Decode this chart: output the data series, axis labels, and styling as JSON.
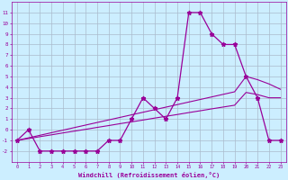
{
  "xlabel": "Windchill (Refroidissement éolien,°C)",
  "hours": [
    0,
    1,
    2,
    3,
    4,
    5,
    6,
    7,
    8,
    9,
    10,
    11,
    12,
    13,
    14,
    15,
    16,
    17,
    18,
    19,
    20,
    21,
    22,
    23
  ],
  "windchill": [
    -1,
    0,
    -2,
    -2,
    -2,
    -2,
    -2,
    -2,
    -1,
    -1,
    1,
    3,
    2,
    1,
    3,
    11,
    11,
    9,
    8,
    8,
    5,
    3,
    -1,
    -1
  ],
  "line1": [
    -1,
    -0.83,
    -0.65,
    -0.48,
    -0.3,
    -0.13,
    0.04,
    0.22,
    0.39,
    0.57,
    0.74,
    0.91,
    1.09,
    1.26,
    1.43,
    1.61,
    1.78,
    1.96,
    2.13,
    2.3,
    3.5,
    3.3,
    3.0,
    3.0
  ],
  "line2": [
    -1,
    -0.76,
    -0.52,
    -0.28,
    -0.04,
    0.2,
    0.44,
    0.68,
    0.92,
    1.16,
    1.4,
    1.64,
    1.88,
    2.12,
    2.36,
    2.6,
    2.84,
    3.08,
    3.32,
    3.56,
    5.0,
    4.7,
    4.3,
    3.8
  ],
  "line_color": "#990099",
  "bg_color": "#cceeff",
  "grid_color": "#aabbcc",
  "ylim": [
    -3,
    12
  ],
  "xlim": [
    -0.5,
    23.5
  ],
  "yticks": [
    -2,
    -1,
    0,
    1,
    2,
    3,
    4,
    5,
    6,
    7,
    8,
    9,
    10,
    11
  ],
  "xticks": [
    0,
    1,
    2,
    3,
    4,
    5,
    6,
    7,
    8,
    9,
    10,
    11,
    12,
    13,
    14,
    15,
    16,
    17,
    18,
    19,
    20,
    21,
    22,
    23
  ]
}
